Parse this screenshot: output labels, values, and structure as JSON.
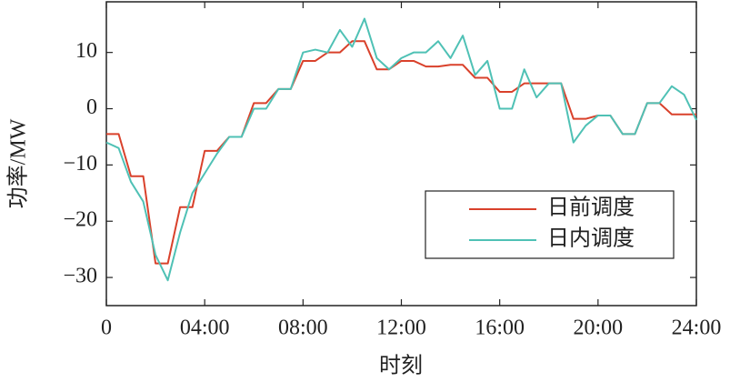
{
  "chart_data": {
    "type": "line",
    "x_label": "时刻",
    "y_label": "功率/MW",
    "x": [
      0,
      0.5,
      1,
      1.5,
      2,
      2.5,
      3,
      3.5,
      4,
      4.5,
      5,
      5.5,
      6,
      6.5,
      7,
      7.5,
      8,
      8.5,
      9,
      9.5,
      10,
      10.5,
      11,
      11.5,
      12,
      12.5,
      13,
      13.5,
      14,
      14.5,
      15,
      15.5,
      16,
      16.5,
      17,
      17.5,
      18,
      18.5,
      19,
      19.5,
      20,
      20.5,
      21,
      21.5,
      22,
      22.5,
      23,
      23.5,
      24
    ],
    "series": [
      {
        "name": "日前调度",
        "color": "#d9412b",
        "values": [
          -4.5,
          -4.5,
          -12,
          -12,
          -27.5,
          -27.5,
          -17.5,
          -17.5,
          -7.5,
          -7.5,
          -5,
          -5,
          1,
          1,
          3.5,
          3.5,
          8.5,
          8.5,
          10,
          10,
          12,
          12,
          7,
          7,
          8.5,
          8.5,
          7.5,
          7.5,
          7.8,
          7.8,
          5.5,
          5.5,
          3,
          3,
          4.5,
          4.5,
          4.5,
          4.5,
          -1.8,
          -1.8,
          -1.2,
          -1.2,
          -4.5,
          -4.5,
          1,
          1,
          -1,
          -1,
          -1
        ]
      },
      {
        "name": "日内调度",
        "color": "#4fc1b5",
        "values": [
          -6,
          -7,
          -13,
          -16.5,
          -26,
          -30.5,
          -22,
          -15,
          -11.5,
          -8,
          -5,
          -5,
          0,
          0,
          3.5,
          3.5,
          10,
          10.5,
          10,
          14,
          11,
          16,
          9,
          7,
          9,
          10,
          10,
          12,
          9,
          13,
          6,
          8.5,
          0,
          0,
          7,
          2,
          4.5,
          4.5,
          -6,
          -3,
          -1.2,
          -1.2,
          -4.5,
          -4.5,
          1,
          1,
          4,
          2.5,
          -2
        ]
      }
    ],
    "xlim": [
      0,
      24
    ],
    "xticks": [
      0,
      {
        "value": 4,
        "label": "04:00"
      },
      {
        "value": 8,
        "label": "08:00"
      },
      {
        "value": 12,
        "label": "12:00"
      },
      {
        "value": 16,
        "label": "16:00"
      },
      {
        "value": 20,
        "label": "20:00"
      },
      {
        "value": 24,
        "label": "24:00"
      }
    ],
    "ylim": [
      -35,
      19
    ],
    "yticks": [
      {
        "value": -30,
        "label": "−30"
      },
      {
        "value": -20,
        "label": "−20"
      },
      {
        "value": -10,
        "label": "−10"
      },
      0,
      10
    ],
    "legend": "lower-right"
  }
}
